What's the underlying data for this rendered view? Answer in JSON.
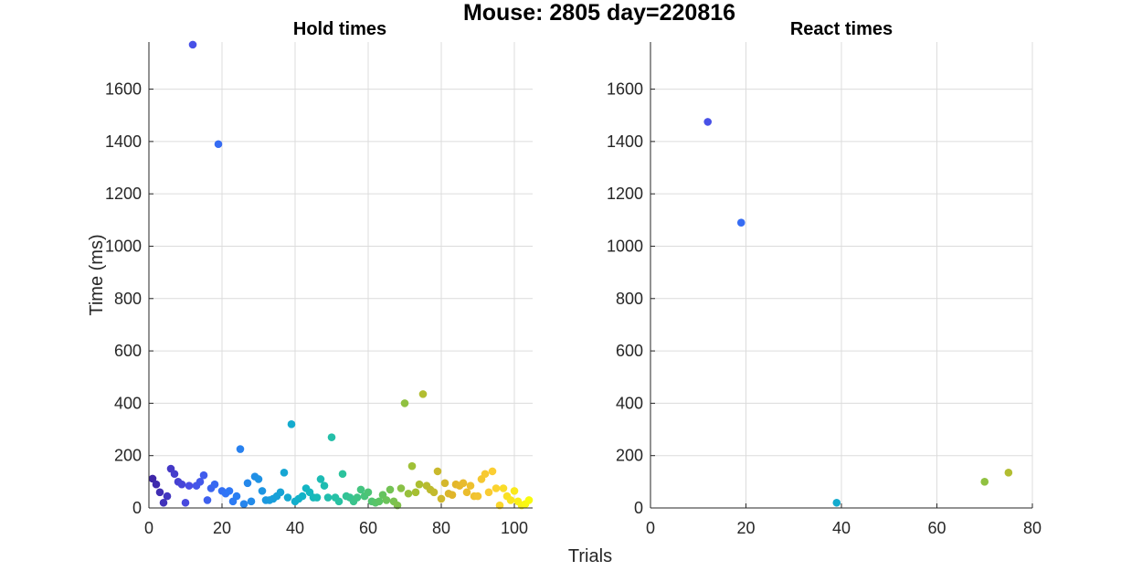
{
  "figure": {
    "title": "Mouse: 2805 day=220816",
    "xlabel": "Trials",
    "ylabel": "Time (ms)",
    "colormap": [
      "#3e26a8",
      "#4a4ee6",
      "#2f76f7",
      "#1b98e0",
      "#11b4c6",
      "#2ac3a0",
      "#5bc465",
      "#a7bf32",
      "#e2b52a",
      "#fbcd34",
      "#f9fb0e"
    ]
  },
  "chart_data": [
    {
      "type": "scatter",
      "title": "Hold times",
      "xlim": [
        0,
        105
      ],
      "ylim": [
        0,
        1780
      ],
      "xticks": [
        0,
        20,
        40,
        60,
        80,
        100
      ],
      "yticks": [
        0,
        200,
        400,
        600,
        800,
        1000,
        1200,
        1400,
        1600
      ],
      "grid": true,
      "x": [
        1,
        2,
        3,
        4,
        5,
        6,
        7,
        8,
        9,
        10,
        11,
        12,
        13,
        14,
        15,
        16,
        17,
        18,
        19,
        20,
        21,
        22,
        23,
        24,
        25,
        26,
        27,
        28,
        29,
        30,
        31,
        32,
        33,
        34,
        35,
        36,
        37,
        38,
        39,
        40,
        41,
        42,
        43,
        44,
        45,
        46,
        47,
        48,
        49,
        50,
        51,
        52,
        53,
        54,
        55,
        56,
        57,
        58,
        59,
        60,
        61,
        62,
        63,
        64,
        65,
        66,
        67,
        68,
        69,
        70,
        71,
        72,
        73,
        74,
        75,
        76,
        77,
        78,
        79,
        80,
        81,
        82,
        83,
        84,
        85,
        86,
        87,
        88,
        89,
        90,
        91,
        92,
        93,
        94,
        95,
        96,
        97,
        98,
        99,
        100,
        101,
        102,
        103,
        104
      ],
      "y": [
        112,
        90,
        60,
        20,
        45,
        150,
        130,
        100,
        90,
        20,
        85,
        1770,
        85,
        100,
        125,
        30,
        75,
        90,
        1390,
        65,
        55,
        65,
        25,
        45,
        225,
        15,
        95,
        25,
        120,
        110,
        65,
        30,
        30,
        35,
        45,
        60,
        135,
        40,
        320,
        25,
        35,
        45,
        75,
        60,
        40,
        40,
        110,
        85,
        40,
        270,
        40,
        25,
        130,
        45,
        40,
        25,
        40,
        70,
        45,
        60,
        25,
        20,
        25,
        50,
        30,
        70,
        25,
        10,
        75,
        400,
        55,
        160,
        60,
        90,
        435,
        85,
        70,
        60,
        140,
        35,
        95,
        55,
        50,
        90,
        85,
        95,
        60,
        85,
        45,
        45,
        110,
        130,
        60,
        140,
        75,
        10,
        75,
        45,
        30,
        65,
        25,
        10,
        15,
        30
      ]
    },
    {
      "type": "scatter",
      "title": "React times",
      "xlim": [
        0,
        80
      ],
      "ylim": [
        0,
        1780
      ],
      "xticks": [
        0,
        20,
        40,
        60,
        80
      ],
      "yticks": [
        0,
        200,
        400,
        600,
        800,
        1000,
        1200,
        1400,
        1600
      ],
      "grid": true,
      "x": [
        12,
        19,
        39,
        70,
        75
      ],
      "y": [
        1475,
        1090,
        20,
        100,
        135
      ]
    }
  ]
}
